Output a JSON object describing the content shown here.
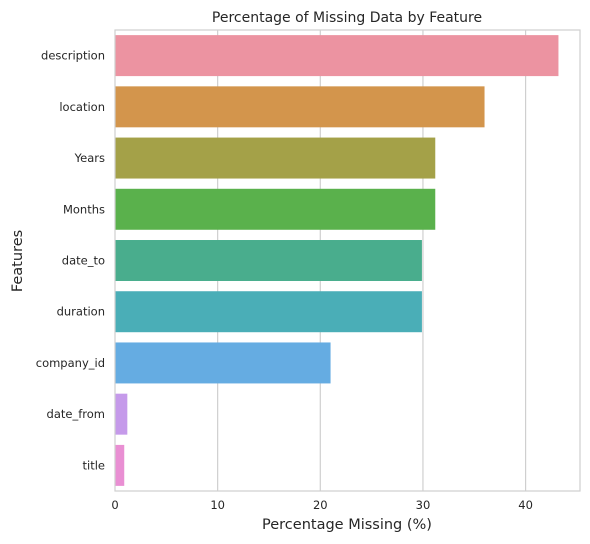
{
  "chart_data": {
    "type": "bar",
    "orientation": "horizontal",
    "title": "Percentage of Missing Data by Feature",
    "xlabel": "Percentage Missing (%)",
    "ylabel": "Features",
    "xlim": [
      0,
      45.3
    ],
    "xticks": [
      0,
      10,
      20,
      30,
      40
    ],
    "grid": true,
    "categories": [
      "description",
      "location",
      "Years",
      "Months",
      "date_to",
      "duration",
      "company_id",
      "date_from",
      "title"
    ],
    "values": [
      43.2,
      36.0,
      31.2,
      31.2,
      29.9,
      29.9,
      21.0,
      1.2,
      0.9
    ],
    "colors": [
      "#ec93a1",
      "#d3954c",
      "#a4a148",
      "#5ab14c",
      "#49ad8d",
      "#4aaeb7",
      "#65ace2",
      "#c59aea",
      "#e98fd3"
    ]
  }
}
